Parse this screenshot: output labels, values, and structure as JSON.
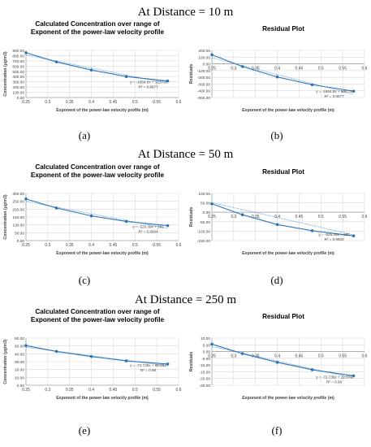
{
  "headings": [
    "At Distance = 10 m",
    "At Distance = 50 m",
    "At Distance = 250 m"
  ],
  "panel_labels": [
    "(a)",
    "(b)",
    "(c)",
    "(d)",
    "(e)",
    "(f)"
  ],
  "colors": {
    "series": "#2E75B6",
    "trend": "#5B9BD5",
    "grid": "#D9D9D9",
    "axis": "#A6A6A6"
  },
  "chart_data": [
    {
      "type": "scatter",
      "title": "Calculated Concentration over range of Exponent of the power-law velocity profile",
      "xlabel": "Exponent of the power-law velocity profile (m)",
      "ylabel": "Concentration (µg/m3)",
      "xlim": [
        0.25,
        0.6
      ],
      "ylim": [
        0,
        900
      ],
      "xticks": [
        "0.25",
        "0.3",
        "0.35",
        "0.4",
        "0.45",
        "0.5",
        "0.55",
        "0.6"
      ],
      "yticks": [
        "0.00",
        "100.00",
        "200.00",
        "300.00",
        "400.00",
        "500.00",
        "600.00",
        "700.00",
        "800.00",
        "900.00"
      ],
      "series": [
        {
          "x": [
            0.25,
            0.32,
            0.4,
            0.48,
            0.575
          ],
          "y": [
            855,
            680,
            525,
            400,
            315
          ]
        }
      ],
      "trendline": {
        "slope": -1664.8,
        "intercept": 1227.8,
        "equation": "y = -1664.8x + 1227.8",
        "r2": "R² = 0.9677"
      }
    },
    {
      "type": "scatter",
      "title": "Residual Plot",
      "xlabel": "Exponent of the power-law velocity profile (m)",
      "ylabel": "Residuals",
      "xlim": [
        0.25,
        0.6
      ],
      "ylim": [
        -500,
        200
      ],
      "xticks": [
        "0.25",
        "0.3",
        "0.35",
        "0.4",
        "0.45",
        "0.5",
        "0.55",
        "0.6"
      ],
      "yticks": [
        "-500.00",
        "-400.00",
        "-300.00",
        "-200.00",
        "-100.00",
        "0.00",
        "100.00",
        "200.00"
      ],
      "series": [
        {
          "x": [
            0.25,
            0.32,
            0.4,
            0.48,
            0.575
          ],
          "y": [
            135,
            -40,
            -195,
            -310,
            -405
          ]
        }
      ],
      "trendline": {
        "slope": -1664.8,
        "intercept": 506.78,
        "equation": "y = -1664.8x + 506.78",
        "r2": "R² = 0.9677"
      }
    },
    {
      "type": "scatter",
      "title": "Calculated Concentration over range of Exponent of the power-law velocity profile",
      "xlabel": "Exponent of the power-law velocity profile (m)",
      "ylabel": "Concentration (µg/m3)",
      "xlim": [
        0.25,
        0.6
      ],
      "ylim": [
        0,
        300
      ],
      "xticks": [
        "0.25",
        "0.3",
        "0.35",
        "0.4",
        "0.45",
        "0.5",
        "0.55",
        "0.6"
      ],
      "yticks": [
        "0.00",
        "50.00",
        "100.00",
        "150.00",
        "200.00",
        "250.00",
        "300.00"
      ],
      "series": [
        {
          "x": [
            0.25,
            0.32,
            0.4,
            0.48,
            0.575
          ],
          "y": [
            265,
            207,
            157,
            122,
            95
          ]
        }
      ],
      "trendline": {
        "slope": -526.39,
        "intercept": 381,
        "equation": "y = -526.39x + 381",
        "r2": "R² = 0.9604"
      }
    },
    {
      "type": "scatter",
      "title": "Residual Plot",
      "xlabel": "Exponent of the power-law velocity profile (m)",
      "ylabel": "Residuals",
      "xlim": [
        0.25,
        0.6
      ],
      "ylim": [
        -150,
        100
      ],
      "xticks": [
        "0.25",
        "0.3",
        "0.35",
        "0.4",
        "0.45",
        "0.5",
        "0.55",
        "0.6"
      ],
      "yticks": [
        "-150.00",
        "-100.00",
        "-50.00",
        "0.00",
        "50.00",
        "100.00"
      ],
      "series": [
        {
          "x": [
            0.25,
            0.32,
            0.4,
            0.48,
            0.575
          ],
          "y": [
            45,
            -13,
            -65,
            -98,
            -125
          ]
        }
      ],
      "trendline": {
        "slope": -526.39,
        "intercept": 183,
        "equation": "y = -526.39x + 183",
        "r2": "R² = 0.9604"
      }
    },
    {
      "type": "scatter",
      "title": "Calculated Concentration over range of Exponent of the power-law velocity profile",
      "xlabel": "Exponent of the power-law velocity profile (m)",
      "ylabel": "Concentration (µg/m3)",
      "xlim": [
        0.25,
        0.6
      ],
      "ylim": [
        0,
        60
      ],
      "xticks": [
        "0.25",
        "0.3",
        "0.35",
        "0.4",
        "0.45",
        "0.5",
        "0.55",
        "0.6"
      ],
      "yticks": [
        "0.00",
        "10.00",
        "20.00",
        "30.00",
        "40.00",
        "50.00",
        "60.00"
      ],
      "series": [
        {
          "x": [
            0.25,
            0.32,
            0.4,
            0.48,
            0.575
          ],
          "y": [
            50.5,
            43,
            36.5,
            31,
            27
          ]
        }
      ],
      "trendline": {
        "slope": -72.736,
        "intercept": 66.582,
        "equation": "y = -72.736x + 66.582",
        "r2": "R² = 0.98"
      }
    },
    {
      "type": "scatter",
      "title": "Residual Plot",
      "xlabel": "Exponent of the power-law velocity profile (m)",
      "ylabel": "Residuals",
      "xlim": [
        0.25,
        0.6
      ],
      "ylim": [
        -25,
        10
      ],
      "xticks": [
        "0.25",
        "0.3",
        "0.35",
        "0.4",
        "0.45",
        "0.5",
        "0.55",
        "0.6"
      ],
      "yticks": [
        "-25.00",
        "-20.00",
        "-15.00",
        "-10.00",
        "-5.00",
        "0.00",
        "5.00",
        "10.00"
      ],
      "series": [
        {
          "x": [
            0.25,
            0.32,
            0.4,
            0.48,
            0.575
          ],
          "y": [
            5.5,
            -1.5,
            -8,
            -13.5,
            -18
          ]
        }
      ],
      "trendline": {
        "slope": -72.736,
        "intercept": 22.076,
        "equation": "y = -72.736x + 22.076",
        "r2": "R² = 0.98"
      }
    }
  ]
}
